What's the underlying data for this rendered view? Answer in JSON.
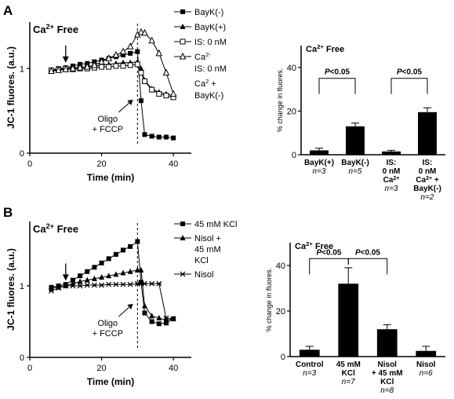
{
  "panels": {
    "A": {
      "letter": "A"
    },
    "B": {
      "letter": "B"
    }
  },
  "chart_data": [
    {
      "id": "A_line",
      "type": "line",
      "title": "Ca2+ Free",
      "title_base": "Ca",
      "title_sup": "2+",
      "title_rest": " Free",
      "xlabel": "Time (min)",
      "ylabel": "JC-1 fluores. (a.u.)",
      "xlim": [
        0,
        45
      ],
      "ylim": [
        0,
        1.55
      ],
      "xticks": [
        0,
        20,
        40
      ],
      "yticks": [
        0,
        1
      ],
      "annotation": {
        "line1": "Oligo",
        "line2": "+ FCCP",
        "x": 30
      },
      "arrow_x": 10,
      "dashed_x": 30,
      "legend": [
        {
          "marker": "square-filled",
          "lines": [
            "BayK(-)"
          ]
        },
        {
          "marker": "triangle-filled",
          "lines": [
            "BayK(+)"
          ]
        },
        {
          "marker": "square-open",
          "lines": [
            "IS: 0 nM"
          ]
        },
        {
          "marker": "triangle-open",
          "lines": [
            "Ca2-",
            "IS: 0 nM"
          ]
        },
        {
          "marker": "none",
          "lines": [
            "Ca2 +",
            "BayK(-)"
          ]
        }
      ],
      "series": [
        {
          "name": "BayK(-)",
          "marker": "square-filled",
          "x": [
            6,
            8,
            10,
            12,
            14,
            16,
            18,
            20,
            22,
            24,
            26,
            28,
            30,
            31,
            32,
            34,
            36,
            38,
            40
          ],
          "y": [
            0.98,
            1.0,
            1.01,
            1.03,
            1.05,
            1.06,
            1.08,
            1.1,
            1.12,
            1.14,
            1.16,
            1.18,
            1.2,
            0.62,
            0.22,
            0.2,
            0.19,
            0.19,
            0.18
          ]
        },
        {
          "name": "BayK(+)",
          "marker": "triangle-filled",
          "x": [
            6,
            8,
            10,
            12,
            14,
            16,
            18,
            20,
            22,
            24,
            26,
            28,
            30,
            31,
            32,
            34,
            36,
            38,
            40
          ],
          "y": [
            0.98,
            0.99,
            1.0,
            1.01,
            1.01,
            1.02,
            1.03,
            1.04,
            1.05,
            1.06,
            1.07,
            1.07,
            1.08,
            1.0,
            0.86,
            0.76,
            0.72,
            0.7,
            0.68
          ]
        },
        {
          "name": "IS: 0 nM",
          "marker": "square-open",
          "x": [
            6,
            8,
            10,
            12,
            14,
            16,
            18,
            20,
            22,
            24,
            26,
            28,
            30,
            31,
            32,
            34,
            36,
            38,
            40
          ],
          "y": [
            0.98,
            0.99,
            1.0,
            0.99,
            1.0,
            1.0,
            1.01,
            1.02,
            1.02,
            1.03,
            1.03,
            1.04,
            1.05,
            0.95,
            0.85,
            0.75,
            0.7,
            0.68,
            0.66
          ]
        },
        {
          "name": "Ca2- IS: 0 nM",
          "marker": "triangle-open",
          "x": [
            6,
            8,
            10,
            12,
            14,
            16,
            18,
            20,
            22,
            24,
            26,
            28,
            30,
            31,
            32,
            34,
            36,
            38,
            40
          ],
          "y": [
            0.97,
            0.98,
            0.99,
            1.0,
            1.01,
            1.02,
            1.04,
            1.08,
            1.12,
            1.16,
            1.2,
            1.26,
            1.4,
            1.43,
            1.42,
            1.33,
            1.18,
            0.95,
            0.7
          ]
        }
      ]
    },
    {
      "id": "A_bar",
      "type": "bar",
      "title": "Ca2+ Free",
      "title_base": "Ca",
      "title_sup": "2+",
      "title_rest": " Free",
      "ylabel": "% change in fluores.",
      "ylim": [
        0,
        50
      ],
      "yticks": [
        0,
        20,
        40
      ],
      "categories": [
        {
          "lines": [
            "BayK(+)"
          ],
          "n": "n=3"
        },
        {
          "lines": [
            "BayK(-)"
          ],
          "n": "n=5"
        },
        {
          "lines": [
            "IS:",
            "0 nM",
            "Ca2+"
          ],
          "n": "n=3"
        },
        {
          "lines": [
            "IS:",
            "0 nM",
            "Ca2+ +",
            "BayK(-)"
          ],
          "n": "n=2"
        }
      ],
      "values": [
        2,
        13,
        1.5,
        19.5
      ],
      "errors": [
        1,
        1.5,
        0.5,
        2
      ],
      "significance": [
        {
          "from": 0,
          "to": 1,
          "label": "P<0.05",
          "y": 35
        },
        {
          "from": 2,
          "to": 3,
          "label": "P<0.05",
          "y": 35
        }
      ]
    },
    {
      "id": "B_line",
      "type": "line",
      "title": "Ca2+ Free",
      "title_base": "Ca",
      "title_sup": "2+",
      "title_rest": " Free",
      "xlabel": "Time (min)",
      "ylabel": "JC-1 fluores. (a.u.)",
      "xlim": [
        0,
        45
      ],
      "ylim": [
        0,
        1.9
      ],
      "xticks": [
        0,
        20,
        40
      ],
      "yticks": [
        0,
        1
      ],
      "annotation": {
        "line1": "Oligo",
        "line2": "+ FCCP",
        "x": 30
      },
      "arrow_x": 10,
      "dashed_x": 30,
      "legend": [
        {
          "marker": "square-filled",
          "lines": [
            "45 mM KCl"
          ]
        },
        {
          "marker": "triangle-filled",
          "lines": [
            "Nisol +",
            "45 mM",
            "KCl"
          ]
        },
        {
          "marker": "star",
          "lines": [
            "Nisol"
          ]
        }
      ],
      "series": [
        {
          "name": "45 mM KCl",
          "marker": "square-filled",
          "x": [
            6,
            8,
            10,
            12,
            14,
            16,
            18,
            20,
            22,
            24,
            26,
            28,
            30,
            31,
            32,
            34,
            36,
            38,
            40
          ],
          "y": [
            0.98,
            1.0,
            1.02,
            1.08,
            1.14,
            1.2,
            1.26,
            1.32,
            1.38,
            1.44,
            1.5,
            1.55,
            1.62,
            1.05,
            0.62,
            0.5,
            0.47,
            0.48,
            0.54
          ]
        },
        {
          "name": "Nisol + 45 mM KCl",
          "marker": "triangle-filled",
          "x": [
            6,
            8,
            10,
            12,
            14,
            16,
            18,
            20,
            22,
            24,
            26,
            28,
            30,
            31,
            32,
            34,
            36,
            38,
            40
          ],
          "y": [
            0.97,
            0.98,
            1.0,
            1.03,
            1.06,
            1.08,
            1.1,
            1.12,
            1.14,
            1.16,
            1.18,
            1.2,
            1.22,
            1.22,
            0.72,
            0.58,
            0.55,
            0.52,
            0.54
          ]
        },
        {
          "name": "Nisol",
          "marker": "star",
          "x": [
            6,
            8,
            10,
            12,
            14,
            16,
            18,
            20,
            22,
            24,
            26,
            28,
            30,
            31,
            32,
            34,
            36,
            38,
            40
          ],
          "y": [
            0.93,
            0.97,
            1.0,
            1.0,
            1.0,
            1.01,
            1.01,
            1.01,
            1.02,
            1.02,
            1.02,
            1.02,
            1.03,
            1.03,
            1.03,
            1.03,
            1.03,
            0.55,
            0.54
          ]
        }
      ]
    },
    {
      "id": "B_bar",
      "type": "bar",
      "title": "Ca2+ Free",
      "title_base": "Ca",
      "title_sup": "2+",
      "title_rest": " Free",
      "ylabel": "% change in fluores.",
      "ylim": [
        0,
        50
      ],
      "yticks": [
        0,
        20,
        40
      ],
      "categories": [
        {
          "lines": [
            "Control"
          ],
          "n": "n=3"
        },
        {
          "lines": [
            "45 mM",
            "KCl"
          ],
          "n": "n=7"
        },
        {
          "lines": [
            "Nisol",
            "+ 45 mM",
            "KCl"
          ],
          "n": "n=8"
        },
        {
          "lines": [
            "Nisol"
          ],
          "n": "n=6"
        }
      ],
      "values": [
        3,
        32,
        12,
        2.5
      ],
      "errors": [
        1.5,
        7,
        2,
        2
      ],
      "significance": [
        {
          "from": 0,
          "to": 1,
          "label": "P<0.05",
          "y": 43
        },
        {
          "from": 1,
          "to": 2,
          "label": "P<0.05",
          "y": 43
        }
      ]
    }
  ]
}
